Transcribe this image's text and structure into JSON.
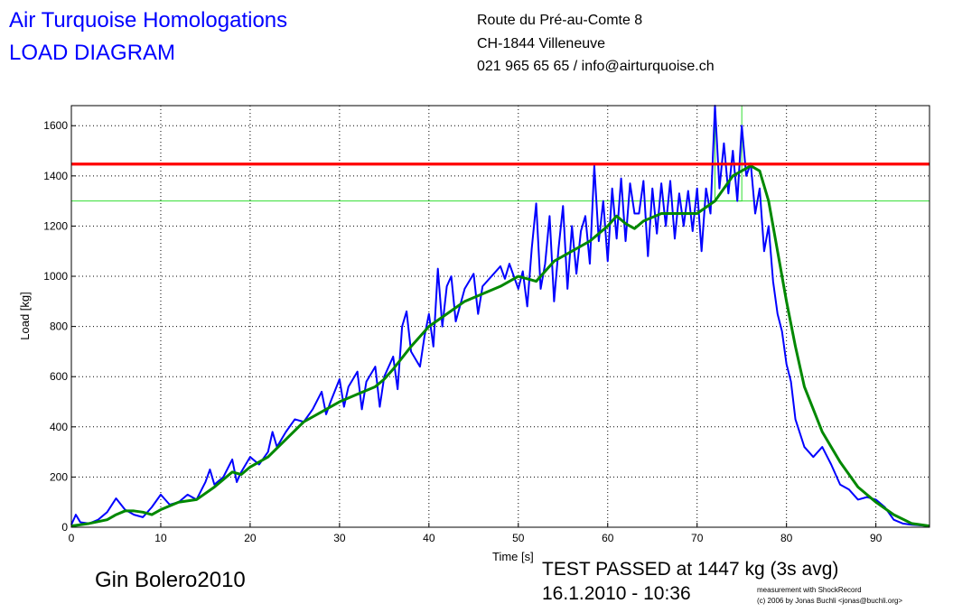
{
  "chart_data": {
    "type": "line",
    "title": "Air Turquoise Homologations",
    "subtitle": "LOAD DIAGRAM",
    "address": [
      "Route du Pré-au-Comte 8",
      "CH-1844 Villeneuve",
      "021 965 65 65 / info@airturquoise.ch"
    ],
    "x_label": "Time [s]",
    "y_label": "Load [kg]",
    "glider": "Gin Bolero2010",
    "result": "TEST PASSED at 1447 kg (3s avg)",
    "date": "16.1.2010 - 10:36",
    "credits": [
      "measurement with ShockRecord",
      "(c) 2006 by Jonas Buchli <jonas@buchli.org>"
    ],
    "xlim": [
      0,
      96
    ],
    "ylim": [
      0,
      1680
    ],
    "xticks": [
      0,
      10,
      20,
      30,
      40,
      50,
      60,
      70,
      80,
      90
    ],
    "yticks": [
      0,
      200,
      400,
      600,
      800,
      1000,
      1200,
      1400,
      1600
    ],
    "grid": true,
    "hlines": [
      {
        "value": 1447,
        "color": "#ff0000"
      },
      {
        "value": 1300,
        "color": "#33dd33"
      }
    ],
    "box": {
      "x": [
        72,
        75
      ],
      "y": [
        1300,
        1680
      ],
      "color": "#33dd33"
    },
    "series": [
      {
        "color": "#0000ff",
        "x": [
          0,
          0.5,
          1,
          2,
          3,
          4,
          5,
          6,
          7,
          8,
          9,
          10,
          11,
          12,
          13,
          14,
          15,
          15.5,
          16,
          17,
          18,
          18.5,
          19,
          20,
          21,
          22,
          22.5,
          23,
          24,
          25,
          26,
          27,
          28,
          28.5,
          29,
          30,
          30.5,
          31,
          32,
          32.5,
          33,
          34,
          34.5,
          35,
          36,
          36.5,
          37,
          37.5,
          38,
          39,
          39.5,
          40,
          40.5,
          41,
          41.5,
          42,
          42.5,
          43,
          44,
          45,
          45.5,
          46,
          47,
          48,
          48.5,
          49,
          50,
          50.5,
          51,
          51.5,
          52,
          52.5,
          53,
          53.5,
          54,
          54.5,
          55,
          55.5,
          56,
          56.5,
          57,
          57.5,
          58,
          58.5,
          59,
          59.5,
          60,
          60.5,
          61,
          61.5,
          62,
          62.5,
          63,
          63.5,
          64,
          64.5,
          65,
          65.5,
          66,
          66.5,
          67,
          67.5,
          68,
          68.5,
          69,
          69.5,
          70,
          70.5,
          71,
          71.5,
          72,
          72.5,
          73,
          73.5,
          74,
          74.5,
          75,
          75.5,
          76,
          76.5,
          77,
          77.5,
          78,
          78.5,
          79,
          79.5,
          80,
          80.5,
          81,
          82,
          83,
          84,
          85,
          86,
          87,
          88,
          89,
          90,
          91,
          92,
          93,
          94,
          96
        ],
        "values": [
          10,
          50,
          20,
          15,
          30,
          60,
          115,
          70,
          50,
          40,
          80,
          130,
          90,
          100,
          130,
          110,
          180,
          230,
          170,
          200,
          270,
          180,
          220,
          280,
          250,
          300,
          380,
          320,
          380,
          430,
          420,
          470,
          540,
          450,
          500,
          590,
          480,
          560,
          620,
          470,
          580,
          640,
          480,
          600,
          680,
          550,
          800,
          860,
          700,
          640,
          760,
          850,
          720,
          1030,
          800,
          960,
          1000,
          820,
          950,
          1010,
          850,
          960,
          1000,
          1040,
          990,
          1050,
          950,
          1020,
          880,
          1110,
          1290,
          950,
          1050,
          1240,
          900,
          1110,
          1280,
          950,
          1200,
          1010,
          1180,
          1240,
          1050,
          1440,
          1140,
          1300,
          1060,
          1350,
          1150,
          1390,
          1140,
          1370,
          1250,
          1250,
          1380,
          1080,
          1350,
          1170,
          1370,
          1200,
          1380,
          1150,
          1330,
          1200,
          1340,
          1180,
          1350,
          1100,
          1350,
          1250,
          1680,
          1350,
          1530,
          1330,
          1500,
          1300,
          1600,
          1400,
          1450,
          1250,
          1350,
          1100,
          1200,
          980,
          850,
          780,
          650,
          580,
          430,
          320,
          280,
          320,
          250,
          170,
          150,
          110,
          120,
          110,
          80,
          30,
          15,
          10,
          5
        ]
      },
      {
        "color": "#008800",
        "x": [
          0,
          2,
          4,
          5,
          6,
          7,
          8,
          9,
          10,
          12,
          14,
          16,
          18,
          19,
          20,
          22,
          24,
          26,
          28,
          30,
          32,
          34,
          35,
          36,
          38,
          40,
          42,
          44,
          46,
          48,
          50,
          52,
          54,
          56,
          58,
          60,
          61,
          62,
          63,
          64,
          66,
          68,
          70,
          72,
          74,
          76,
          77,
          78,
          79,
          80,
          81,
          82,
          84,
          86,
          88,
          90,
          92,
          94,
          96
        ],
        "values": [
          5,
          15,
          30,
          50,
          65,
          65,
          60,
          50,
          70,
          100,
          110,
          160,
          220,
          210,
          240,
          280,
          350,
          420,
          460,
          500,
          530,
          560,
          590,
          630,
          720,
          800,
          850,
          900,
          930,
          960,
          1000,
          980,
          1060,
          1100,
          1140,
          1200,
          1240,
          1210,
          1190,
          1220,
          1250,
          1250,
          1250,
          1300,
          1400,
          1440,
          1420,
          1300,
          1100,
          900,
          720,
          560,
          380,
          260,
          160,
          100,
          50,
          15,
          5
        ]
      }
    ]
  }
}
